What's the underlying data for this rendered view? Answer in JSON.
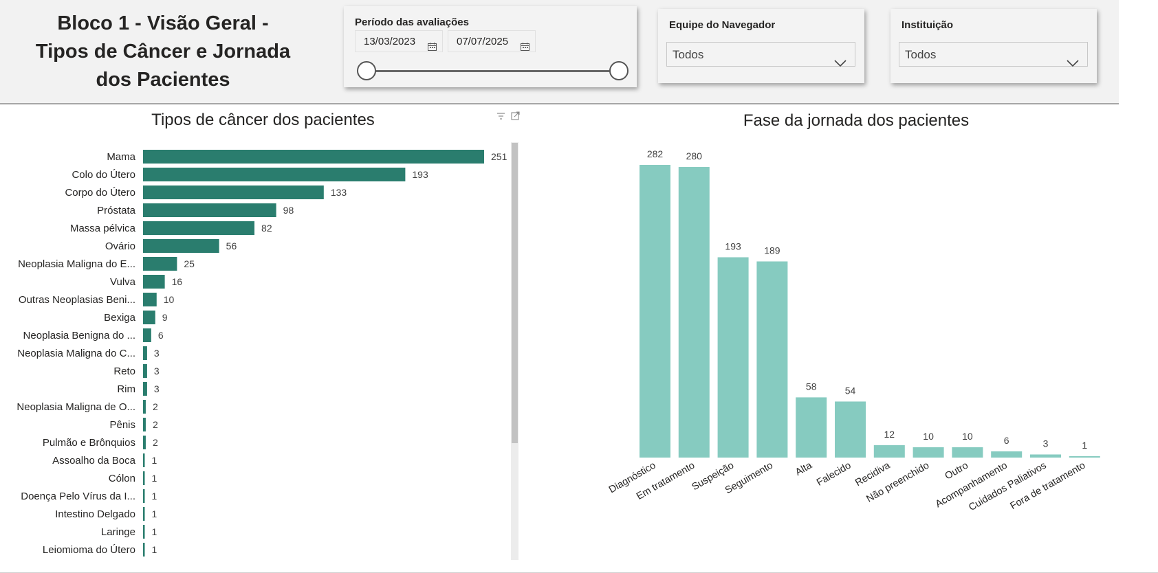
{
  "page_title": "Bloco 1 - Visão Geral -\nTipos de Câncer e Jornada\ndos Pacientes",
  "filters": {
    "period": {
      "title": "Período das avaliações",
      "start_date": "13/03/2023",
      "end_date": "07/07/2025",
      "start_fraction": 0.0,
      "end_fraction": 1.0
    },
    "team": {
      "title": "Equipe do Navegador",
      "value": "Todos"
    },
    "institution": {
      "title": "Instituição",
      "value": "Todos"
    }
  },
  "colors": {
    "bar_dark": "#2a7d6e",
    "bar_light": "#86cbc0",
    "header_bg": "#f2f2f2"
  },
  "chart_data": [
    {
      "type": "bar",
      "orientation": "horizontal",
      "title": "Tipos de câncer dos pacientes",
      "categories": [
        "Mama",
        "Colo do Útero",
        "Corpo do Útero",
        "Próstata",
        "Massa pélvica",
        "Ovário",
        "Neoplasia Maligna do E...",
        "Vulva",
        "Outras Neoplasias Beni...",
        "Bexiga",
        "Neoplasia Benigna do ...",
        "Neoplasia Maligna do C...",
        "Reto",
        "Rim",
        "Neoplasia Maligna de O...",
        "Pênis",
        "Pulmão e Brônquios",
        "Assoalho da Boca",
        "Cólon",
        "Doença Pelo Vírus da I...",
        "Intestino Delgado",
        "Laringe",
        "Leiomioma do Útero"
      ],
      "values": [
        251,
        193,
        133,
        98,
        82,
        56,
        25,
        16,
        10,
        9,
        6,
        3,
        3,
        3,
        2,
        2,
        2,
        1,
        1,
        1,
        1,
        1,
        1
      ],
      "xlim": [
        0,
        251
      ],
      "data_labels": true,
      "color": "#2a7d6e"
    },
    {
      "type": "bar",
      "orientation": "vertical",
      "title": "Fase da jornada dos pacientes",
      "categories": [
        "Diagnóstico",
        "Em tratamento",
        "Suspeição",
        "Seguimento",
        "Alta",
        "Falecido",
        "Recidiva",
        "Não preenchido",
        "Outro",
        "Acompanhamento",
        "Cuidados Paliativos",
        "Fora de tratamento"
      ],
      "values": [
        282,
        280,
        193,
        189,
        58,
        54,
        12,
        10,
        10,
        6,
        3,
        1
      ],
      "ylim": [
        0,
        282
      ],
      "data_labels": true,
      "color": "#86cbc0"
    }
  ]
}
